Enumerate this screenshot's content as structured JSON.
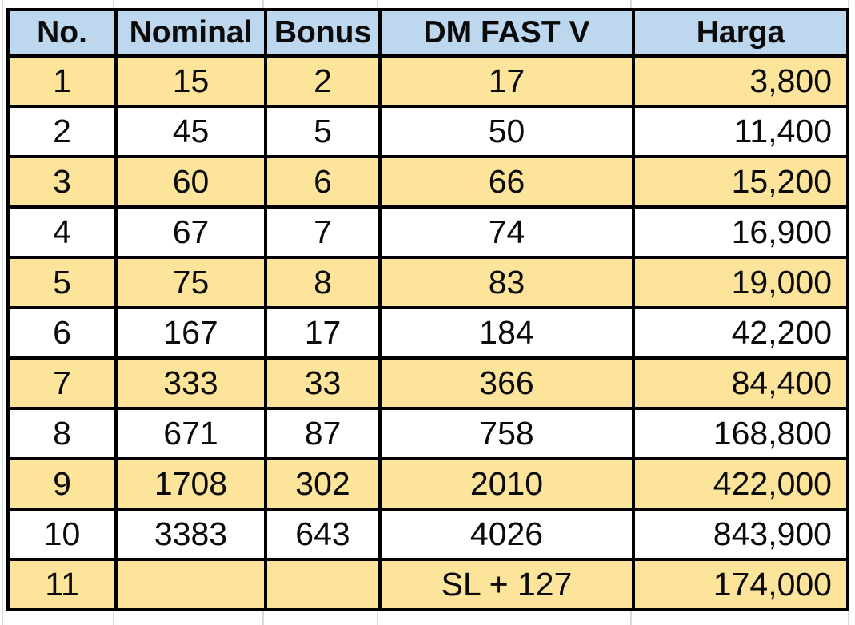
{
  "table": {
    "columns": [
      {
        "key": "no",
        "label": "No."
      },
      {
        "key": "nominal",
        "label": "Nominal"
      },
      {
        "key": "bonus",
        "label": "Bonus"
      },
      {
        "key": "dm_fast_v",
        "label": "DM FAST V"
      },
      {
        "key": "harga",
        "label": "Harga"
      }
    ],
    "rows": [
      [
        "1",
        "15",
        "2",
        "17",
        "3,800"
      ],
      [
        "2",
        "45",
        "5",
        "50",
        "11,400"
      ],
      [
        "3",
        "60",
        "6",
        "66",
        "15,200"
      ],
      [
        "4",
        "67",
        "7",
        "74",
        "16,900"
      ],
      [
        "5",
        "75",
        "8",
        "83",
        "19,000"
      ],
      [
        "6",
        "167",
        "17",
        "184",
        "42,200"
      ],
      [
        "7",
        "333",
        "33",
        "366",
        "84,400"
      ],
      [
        "8",
        "671",
        "87",
        "758",
        "168,800"
      ],
      [
        "9",
        "1708",
        "302",
        "2010",
        "422,000"
      ],
      [
        "10",
        "3383",
        "643",
        "4026",
        "843,900"
      ],
      [
        "11",
        "",
        "",
        "SL + 127",
        "174,000"
      ]
    ],
    "colors": {
      "header_bg": "#BDD7EE",
      "band_bg": "#FCE49A",
      "row_bg": "#FFFFFF",
      "border": "#000000",
      "gridline": "#D9D9D9"
    }
  }
}
